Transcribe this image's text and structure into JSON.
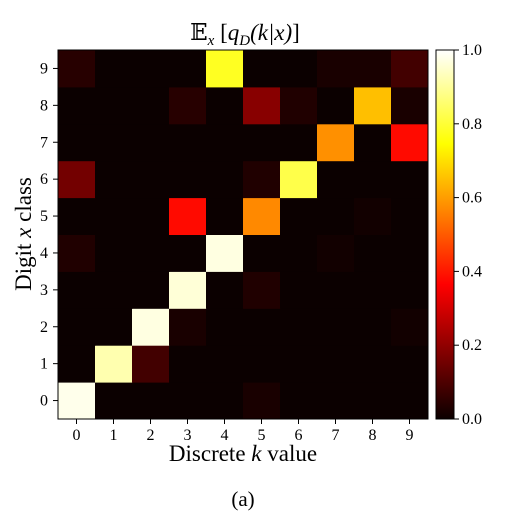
{
  "chart_data": {
    "type": "heatmap",
    "title": "𝔼ₓ [q_D(k|x)]",
    "title_parts": {
      "e": "𝔼",
      "sub_x": "x",
      "bracket_open": " [",
      "q": "q",
      "sub_d": "D",
      "args": "(k|x)",
      "bracket_close": "]"
    },
    "xlabel": "Discrete k value",
    "xlabel_parts": {
      "pre": "Discrete ",
      "var": "k",
      "post": " value"
    },
    "ylabel": "Digit x class",
    "ylabel_parts": {
      "pre": "Digit ",
      "var": "x",
      "post": " class"
    },
    "x_categories": [
      "0",
      "1",
      "2",
      "3",
      "4",
      "5",
      "6",
      "7",
      "8",
      "9"
    ],
    "y_categories": [
      "0",
      "1",
      "2",
      "3",
      "4",
      "5",
      "6",
      "7",
      "8",
      "9"
    ],
    "values": [
      [
        0.98,
        0.0,
        0.0,
        0.0,
        0.0,
        0.02,
        0.0,
        0.0,
        0.0,
        0.0
      ],
      [
        0.0,
        0.92,
        0.08,
        0.0,
        0.0,
        0.0,
        0.0,
        0.0,
        0.0,
        0.0
      ],
      [
        0.0,
        0.0,
        0.97,
        0.02,
        0.0,
        0.0,
        0.0,
        0.0,
        0.0,
        0.01
      ],
      [
        0.0,
        0.0,
        0.0,
        0.96,
        0.0,
        0.03,
        0.0,
        0.0,
        0.0,
        0.0
      ],
      [
        0.03,
        0.0,
        0.0,
        0.0,
        0.97,
        0.0,
        0.0,
        0.01,
        0.0,
        0.0
      ],
      [
        0.0,
        0.0,
        0.0,
        0.38,
        0.0,
        0.57,
        0.0,
        0.0,
        0.01,
        0.0
      ],
      [
        0.15,
        0.0,
        0.0,
        0.0,
        0.0,
        0.03,
        0.82,
        0.0,
        0.0,
        0.0
      ],
      [
        0.0,
        0.0,
        0.0,
        0.0,
        0.0,
        0.0,
        0.0,
        0.58,
        0.0,
        0.38
      ],
      [
        0.0,
        0.0,
        0.0,
        0.04,
        0.0,
        0.18,
        0.03,
        0.0,
        0.65,
        0.02
      ],
      [
        0.04,
        0.0,
        0.0,
        0.0,
        0.78,
        0.0,
        0.0,
        0.02,
        0.02,
        0.08
      ]
    ],
    "value_range": [
      0.0,
      1.0
    ],
    "colormap": "hot",
    "colorbar_ticks": [
      "0.0",
      "0.2",
      "0.4",
      "0.6",
      "0.8",
      "1.0"
    ],
    "colorbar_position": "right",
    "grid": false
  },
  "caption": "(a)"
}
